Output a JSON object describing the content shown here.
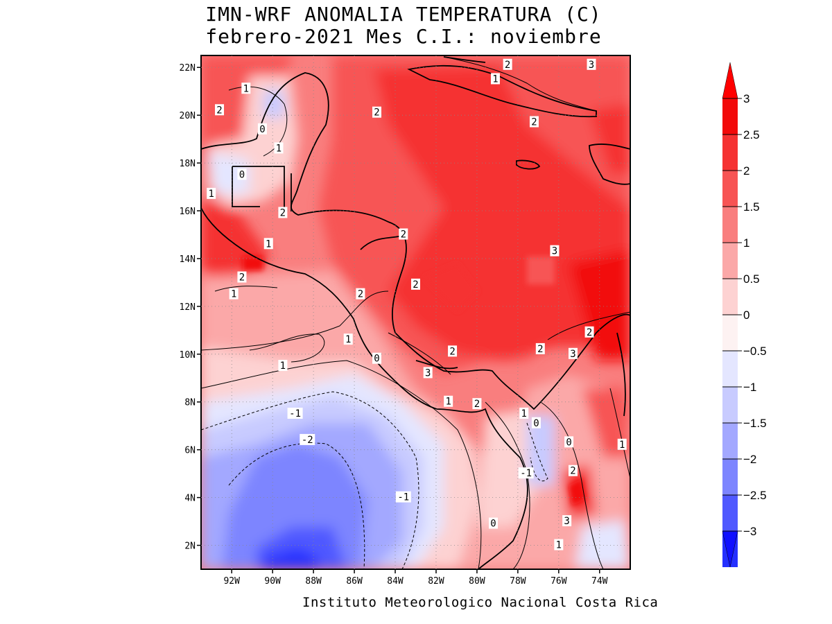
{
  "title": {
    "line1": "IMN-WRF  ANOMALIA TEMPERATURA (C)",
    "line2": "febrero-2021 Mes C.I.: noviembre"
  },
  "credit": "Instituto Meteorologico Nacional Costa Rica",
  "map": {
    "lat_range": [
      1,
      22.5
    ],
    "lon_range": [
      -93.5,
      -72.5
    ],
    "lat_ticks": [
      {
        "value": 2,
        "label": "2N"
      },
      {
        "value": 4,
        "label": "4N"
      },
      {
        "value": 6,
        "label": "6N"
      },
      {
        "value": 8,
        "label": "8N"
      },
      {
        "value": 10,
        "label": "10N"
      },
      {
        "value": 12,
        "label": "12N"
      },
      {
        "value": 14,
        "label": "14N"
      },
      {
        "value": 16,
        "label": "16N"
      },
      {
        "value": 18,
        "label": "18N"
      },
      {
        "value": 20,
        "label": "20N"
      },
      {
        "value": 22,
        "label": "22N"
      }
    ],
    "lon_ticks": [
      {
        "value": -92,
        "label": "92W"
      },
      {
        "value": -90,
        "label": "90W"
      },
      {
        "value": -88,
        "label": "88W"
      },
      {
        "value": -86,
        "label": "86W"
      },
      {
        "value": -84,
        "label": "84W"
      },
      {
        "value": -82,
        "label": "82W"
      },
      {
        "value": -80,
        "label": "80W"
      },
      {
        "value": -78,
        "label": "78W"
      },
      {
        "value": -76,
        "label": "76W"
      },
      {
        "value": -74,
        "label": "74W"
      }
    ],
    "contour_labels": [
      {
        "text": "1",
        "lon": -91.3,
        "lat": 21.1
      },
      {
        "text": "2",
        "lon": -92.6,
        "lat": 20.2
      },
      {
        "text": "2",
        "lon": -84.9,
        "lat": 20.1
      },
      {
        "text": "0",
        "lon": -90.5,
        "lat": 19.4
      },
      {
        "text": "1",
        "lon": -89.7,
        "lat": 18.6
      },
      {
        "text": "0",
        "lon": -91.5,
        "lat": 17.5
      },
      {
        "text": "1",
        "lon": -93.0,
        "lat": 16.7
      },
      {
        "text": "2",
        "lon": -89.5,
        "lat": 15.9
      },
      {
        "text": "1",
        "lon": -90.2,
        "lat": 14.6
      },
      {
        "text": "2",
        "lon": -83.6,
        "lat": 15.0
      },
      {
        "text": "2",
        "lon": -91.5,
        "lat": 13.2
      },
      {
        "text": "1",
        "lon": -91.9,
        "lat": 12.5
      },
      {
        "text": "2",
        "lon": -85.7,
        "lat": 12.5
      },
      {
        "text": "2",
        "lon": -83.0,
        "lat": 12.9
      },
      {
        "text": "3",
        "lon": -76.2,
        "lat": 14.3
      },
      {
        "text": "1",
        "lon": -86.3,
        "lat": 10.6
      },
      {
        "text": "0",
        "lon": -84.9,
        "lat": 9.8
      },
      {
        "text": "1",
        "lon": -89.5,
        "lat": 9.5
      },
      {
        "text": "2",
        "lon": -81.2,
        "lat": 10.1
      },
      {
        "text": "3",
        "lon": -82.4,
        "lat": 9.2
      },
      {
        "text": "2",
        "lon": -76.9,
        "lat": 10.2
      },
      {
        "text": "3",
        "lon": -75.3,
        "lat": 10.0
      },
      {
        "text": "2",
        "lon": -74.5,
        "lat": 10.9
      },
      {
        "text": "1",
        "lon": -81.4,
        "lat": 8.0
      },
      {
        "text": "2",
        "lon": -80.0,
        "lat": 7.9
      },
      {
        "text": "-1",
        "lon": -88.9,
        "lat": 7.5
      },
      {
        "text": "-2",
        "lon": -88.3,
        "lat": 6.4
      },
      {
        "text": "1",
        "lon": -77.7,
        "lat": 7.5
      },
      {
        "text": "0",
        "lon": -77.1,
        "lat": 7.1
      },
      {
        "text": "0",
        "lon": -75.5,
        "lat": 6.3
      },
      {
        "text": "1",
        "lon": -72.9,
        "lat": 6.2
      },
      {
        "text": "-1",
        "lon": -77.6,
        "lat": 5.0
      },
      {
        "text": "2",
        "lon": -75.3,
        "lat": 5.1
      },
      {
        "text": "-1",
        "lon": -83.6,
        "lat": 4.0
      },
      {
        "text": "0",
        "lon": -79.2,
        "lat": 2.9
      },
      {
        "text": "3",
        "lon": -75.6,
        "lat": 3.0
      },
      {
        "text": "1",
        "lon": -76.0,
        "lat": 2.0
      },
      {
        "text": "2",
        "lon": -78.5,
        "lat": 22.1
      },
      {
        "text": "3",
        "lon": -74.4,
        "lat": 22.1
      },
      {
        "text": "1",
        "lon": -79.1,
        "lat": 21.5
      },
      {
        "text": "2",
        "lon": -77.2,
        "lat": 19.7
      }
    ]
  },
  "colorbar": {
    "levels": [
      "3",
      "2.5",
      "2",
      "1.5",
      "1",
      "0.5",
      "0",
      "-0.5",
      "-1",
      "-1.5",
      "-2",
      "-2.5",
      "-3"
    ],
    "colors": [
      "#f20a0a",
      "#f53232",
      "#f75454",
      "#f97e7e",
      "#fba8a8",
      "#fdd2d2",
      "#fdf2f2",
      "#e4e6ff",
      "#c8cbff",
      "#a3a8ff",
      "#7d85ff",
      "#5059ff",
      "#2530ff"
    ],
    "max_color": "#ff0000",
    "min_color": "#1010ff"
  }
}
